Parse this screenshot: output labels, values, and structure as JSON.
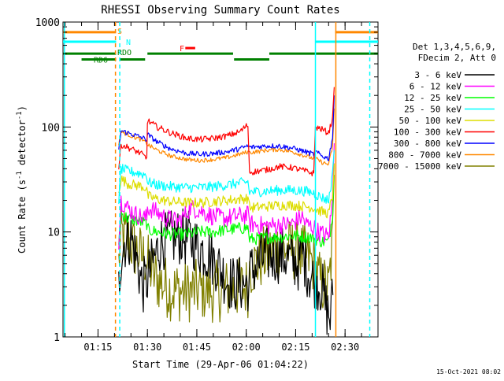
{
  "chart_data": {
    "type": "line",
    "title": "RHESSI Observing Summary Count Rates",
    "xlabel": "Start Time (29-Apr-06 01:04:22)",
    "ylabel_parts": [
      "Count Rate (s",
      "-1",
      " detector",
      "-1",
      ")"
    ],
    "y_scale": "log",
    "ylim": [
      1,
      1000
    ],
    "xlim_minutes": [
      64.37,
      160.0
    ],
    "y_ticks": [
      {
        "value": 1,
        "label": "1"
      },
      {
        "value": 10,
        "label": "10"
      },
      {
        "value": 100,
        "label": "100"
      },
      {
        "value": 1000,
        "label": "1000"
      }
    ],
    "x_ticks": [
      {
        "value": 75,
        "label": "01:15"
      },
      {
        "value": 90,
        "label": "01:30"
      },
      {
        "value": 105,
        "label": "01:45"
      },
      {
        "value": 120,
        "label": "02:00"
      },
      {
        "value": 135,
        "label": "02:15"
      },
      {
        "value": 150,
        "label": "02:30"
      }
    ],
    "legend_header": [
      "Det 1,3,4,5,6,9,",
      "FDecim 2, Att 0"
    ],
    "legend_placement": "right",
    "series": [
      {
        "name": "3 - 6 keV",
        "color": "#000000",
        "points": [
          [
            81.3,
            3
          ],
          [
            82,
            6
          ],
          [
            83,
            8
          ],
          [
            85,
            9
          ],
          [
            87,
            5
          ],
          [
            88.5,
            3
          ],
          [
            90,
            3.5
          ],
          [
            91.5,
            5
          ],
          [
            94,
            8
          ],
          [
            96.5,
            8.5
          ],
          [
            100,
            9
          ],
          [
            103,
            8.5
          ],
          [
            106,
            7
          ],
          [
            109,
            6
          ],
          [
            112,
            4.5
          ],
          [
            114,
            3.5
          ],
          [
            116,
            3.2
          ],
          [
            120.5,
            3.2
          ],
          [
            121,
            4
          ],
          [
            126,
            6
          ],
          [
            131,
            6
          ],
          [
            136,
            5
          ],
          [
            137,
            6.5
          ],
          [
            139,
            4
          ],
          [
            143,
            3
          ],
          [
            144,
            2
          ],
          [
            145.5,
            1.5
          ],
          [
            146.3,
            2.5
          ]
        ]
      },
      {
        "name": "6 - 12 keV",
        "color": "#ff00ff",
        "points": [
          [
            81.3,
            8
          ],
          [
            82,
            20
          ],
          [
            84,
            17
          ],
          [
            86,
            15
          ],
          [
            88,
            14
          ],
          [
            89.8,
            13.5
          ],
          [
            90,
            17
          ],
          [
            92,
            16
          ],
          [
            95,
            14
          ],
          [
            99,
            12.5
          ],
          [
            101,
            14
          ],
          [
            103,
            17
          ],
          [
            106,
            16
          ],
          [
            110,
            14
          ],
          [
            114,
            13.5
          ],
          [
            116,
            14
          ],
          [
            120.5,
            14.5
          ],
          [
            121,
            12
          ],
          [
            125,
            11.5
          ],
          [
            129,
            11.5
          ],
          [
            134,
            12
          ],
          [
            137,
            14
          ],
          [
            138,
            12
          ],
          [
            140.5,
            11
          ],
          [
            142,
            10
          ],
          [
            145,
            9
          ],
          [
            146.2,
            20
          ],
          [
            146.7,
            70
          ]
        ]
      },
      {
        "name": "12 - 25 keV",
        "color": "#00ff00",
        "points": [
          [
            81.3,
            8
          ],
          [
            82,
            15
          ],
          [
            84,
            13.5
          ],
          [
            86,
            13
          ],
          [
            88,
            12.5
          ],
          [
            89.8,
            12
          ],
          [
            90,
            10.5
          ],
          [
            93,
            10
          ],
          [
            97,
            9.5
          ],
          [
            102,
            9.5
          ],
          [
            106,
            10
          ],
          [
            110,
            10
          ],
          [
            114,
            10.5
          ],
          [
            120.5,
            11
          ],
          [
            121,
            8.5
          ],
          [
            126,
            8.8
          ],
          [
            130,
            9
          ],
          [
            134,
            9.2
          ],
          [
            138,
            9
          ],
          [
            140.5,
            8.8
          ],
          [
            142,
            8.2
          ],
          [
            145,
            8
          ],
          [
            146.2,
            15
          ],
          [
            146.7,
            45
          ]
        ]
      },
      {
        "name": "25 - 50 keV",
        "color": "#00ffff",
        "points": [
          [
            81.3,
            20
          ],
          [
            82,
            40
          ],
          [
            84,
            38
          ],
          [
            86,
            37
          ],
          [
            88,
            36
          ],
          [
            89.8,
            35
          ],
          [
            90,
            30
          ],
          [
            93,
            28
          ],
          [
            97,
            27
          ],
          [
            102,
            26.5
          ],
          [
            106,
            26.5
          ],
          [
            110,
            27
          ],
          [
            114,
            28
          ],
          [
            120.5,
            30
          ],
          [
            121,
            24
          ],
          [
            126,
            24.5
          ],
          [
            130,
            25
          ],
          [
            134,
            25
          ],
          [
            138,
            24.5
          ],
          [
            140.5,
            23.5
          ],
          [
            142,
            22
          ],
          [
            145,
            20
          ],
          [
            146.2,
            35
          ],
          [
            146.7,
            60
          ]
        ]
      },
      {
        "name": "50 - 100 keV",
        "color": "#dddd00",
        "points": [
          [
            81.3,
            25
          ],
          [
            82,
            32
          ],
          [
            84,
            29
          ],
          [
            86,
            28
          ],
          [
            88,
            27.5
          ],
          [
            89.8,
            26
          ],
          [
            90,
            22
          ],
          [
            93,
            20.5
          ],
          [
            97,
            19.5
          ],
          [
            102,
            19
          ],
          [
            106,
            19
          ],
          [
            110,
            19.5
          ],
          [
            114,
            20
          ],
          [
            120.5,
            21
          ],
          [
            121,
            17
          ],
          [
            126,
            17.5
          ],
          [
            130,
            18
          ],
          [
            134,
            18
          ],
          [
            138,
            17.5
          ],
          [
            140.5,
            17
          ],
          [
            142,
            16
          ],
          [
            145,
            15
          ],
          [
            146.2,
            22
          ],
          [
            146.7,
            45
          ]
        ]
      },
      {
        "name": "100 - 300 keV",
        "color": "#ff0000",
        "points": [
          [
            81.3,
            40
          ],
          [
            82,
            68
          ],
          [
            84,
            64
          ],
          [
            86,
            60
          ],
          [
            88,
            56
          ],
          [
            89.8,
            50
          ],
          [
            90,
            115
          ],
          [
            93,
            100
          ],
          [
            97,
            88
          ],
          [
            102,
            78
          ],
          [
            106,
            76
          ],
          [
            110,
            78
          ],
          [
            114,
            82
          ],
          [
            118,
            90
          ],
          [
            120.5,
            105
          ],
          [
            121,
            37
          ],
          [
            126,
            39
          ],
          [
            130,
            42
          ],
          [
            134,
            41
          ],
          [
            138,
            38
          ],
          [
            140.5,
            36
          ],
          [
            141,
            100
          ],
          [
            143,
            95
          ],
          [
            145,
            88
          ],
          [
            146.2,
            120
          ],
          [
            146.7,
            240
          ]
        ]
      },
      {
        "name": "300 - 800 keV",
        "color": "#0000ff",
        "points": [
          [
            81.3,
            60
          ],
          [
            82,
            92
          ],
          [
            84,
            88
          ],
          [
            86,
            84
          ],
          [
            88,
            80
          ],
          [
            89.8,
            76
          ],
          [
            90,
            85
          ],
          [
            93,
            72
          ],
          [
            97,
            62
          ],
          [
            102,
            56
          ],
          [
            106,
            55
          ],
          [
            110,
            56
          ],
          [
            114,
            58
          ],
          [
            118,
            62
          ],
          [
            120.5,
            66
          ],
          [
            121,
            64
          ],
          [
            126,
            66
          ],
          [
            130,
            66
          ],
          [
            134,
            63
          ],
          [
            138,
            58
          ],
          [
            140.5,
            55
          ],
          [
            141,
            58
          ],
          [
            143,
            53
          ],
          [
            145,
            50
          ],
          [
            146.2,
            80
          ],
          [
            146.7,
            200
          ]
        ]
      },
      {
        "name": "800 - 7000 keV",
        "color": "#ff8800",
        "points": [
          [
            81.3,
            70
          ],
          [
            82,
            90
          ],
          [
            84,
            85
          ],
          [
            86,
            80
          ],
          [
            88,
            76
          ],
          [
            89.8,
            70
          ],
          [
            90,
            68
          ],
          [
            93,
            60
          ],
          [
            97,
            53
          ],
          [
            102,
            49
          ],
          [
            106,
            48
          ],
          [
            110,
            49
          ],
          [
            114,
            51
          ],
          [
            118,
            55
          ],
          [
            120.5,
            58
          ],
          [
            121,
            57
          ],
          [
            126,
            60
          ],
          [
            130,
            61
          ],
          [
            134,
            58
          ],
          [
            138,
            53
          ],
          [
            140.5,
            50
          ],
          [
            141,
            50
          ],
          [
            143,
            46
          ],
          [
            145,
            44
          ],
          [
            146.2,
            65
          ],
          [
            146.7,
            150
          ]
        ]
      },
      {
        "name": "7000 - 15000 keV",
        "color": "#808000",
        "points": [
          [
            81.3,
            5
          ],
          [
            82,
            9.5
          ],
          [
            84,
            8.5
          ],
          [
            86,
            7
          ],
          [
            88,
            6
          ],
          [
            89.8,
            5.5
          ],
          [
            90,
            5
          ],
          [
            93,
            3.5
          ],
          [
            97,
            2.8
          ],
          [
            102,
            2.7
          ],
          [
            106,
            2.8
          ],
          [
            110,
            2.7
          ],
          [
            114,
            2.8
          ],
          [
            120.5,
            3
          ],
          [
            121,
            4.5
          ],
          [
            126,
            6
          ],
          [
            130,
            7
          ],
          [
            134,
            6.8
          ],
          [
            138,
            6
          ],
          [
            140.5,
            5
          ],
          [
            142,
            3.5
          ],
          [
            145,
            2.8
          ],
          [
            146.2,
            8
          ],
          [
            146.7,
            35
          ]
        ]
      }
    ],
    "state_bars": [
      {
        "label": "S",
        "color": "#ff8800",
        "y": 800,
        "segments": [
          [
            64.37,
            80.5
          ],
          [
            147.0,
            160.0
          ]
        ]
      },
      {
        "label": "N",
        "color": "#00ffff",
        "y": 650,
        "segments": [
          [
            64.37,
            80.5
          ],
          [
            141.0,
            160.0
          ]
        ]
      },
      {
        "label": "F",
        "color": "#ff0000",
        "y": 565,
        "segments": [
          [
            101.5,
            104.5
          ]
        ]
      },
      {
        "label": "RDO",
        "color": "#008000",
        "y": 500,
        "segments": [
          [
            64.37,
            80.5
          ],
          [
            90.0,
            116.0
          ],
          [
            127.0,
            160.0
          ]
        ]
      },
      {
        "label": "RD6",
        "color": "#008000",
        "y": 440,
        "segments": [
          [
            70.0,
            80.5
          ],
          [
            81.5,
            89.3
          ],
          [
            116.3,
            127.0
          ]
        ]
      }
    ],
    "vertical_markers": [
      {
        "x": 64.8,
        "color": "#00ffff",
        "style": "solid"
      },
      {
        "x": 80.3,
        "color": "#ff8800",
        "style": "dashed"
      },
      {
        "x": 81.6,
        "color": "#00ffff",
        "style": "dashed"
      },
      {
        "x": 141.0,
        "color": "#00ffff",
        "style": "solid"
      },
      {
        "x": 147.2,
        "color": "#ff8800",
        "style": "solid"
      },
      {
        "x": 157.5,
        "color": "#00ffff",
        "style": "dashed"
      }
    ],
    "timestamp": "15-Oct-2021 08:02"
  }
}
